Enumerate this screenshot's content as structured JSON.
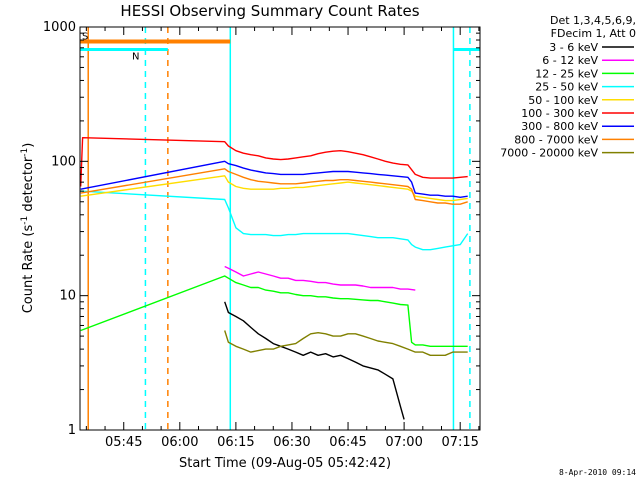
{
  "chart_data": {
    "type": "line",
    "title": "HESSI Observing Summary Count Rates",
    "xlabel": "Start Time (09-Aug-05 05:42:42)",
    "ylabel_parts": [
      "Count Rate (s",
      "-1",
      " detector",
      "-1",
      ")"
    ],
    "y_scale": "log",
    "ylim": [
      1,
      1000
    ],
    "xlim": [
      -11.7,
      95.3
    ],
    "y_ticks": [
      {
        "value": 1,
        "label": "1"
      },
      {
        "value": 10,
        "label": "10"
      },
      {
        "value": 100,
        "label": "100"
      },
      {
        "value": 1000,
        "label": "1000"
      }
    ],
    "x_ticks": [
      {
        "value": 0,
        "label": "05:45"
      },
      {
        "value": 15,
        "label": "06:00"
      },
      {
        "value": 30,
        "label": "06:15"
      },
      {
        "value": 45,
        "label": "06:30"
      },
      {
        "value": 60,
        "label": "06:45"
      },
      {
        "value": 75,
        "label": "07:00"
      },
      {
        "value": 90,
        "label": "07:15"
      }
    ],
    "x_unit_note": "x values are minutes after 05:45",
    "legend": {
      "header": [
        "Det 1,3,4,5,6,9,",
        "FDecim 1, Att 0"
      ],
      "placement": "right"
    },
    "series": [
      {
        "name": "3 - 6 keV",
        "color": "#000000",
        "x": [
          27,
          28,
          30,
          32,
          34,
          36,
          38,
          40,
          42,
          44,
          46,
          48,
          50,
          52,
          54,
          56,
          58,
          60,
          62,
          64,
          66,
          68,
          70,
          72,
          74,
          75
        ],
        "y": [
          9.0,
          7.5,
          7.0,
          6.5,
          5.8,
          5.2,
          4.8,
          4.4,
          4.2,
          4.0,
          3.8,
          3.6,
          3.8,
          3.6,
          3.7,
          3.5,
          3.6,
          3.4,
          3.2,
          3.0,
          2.9,
          2.8,
          2.6,
          2.4,
          1.5,
          1.2
        ]
      },
      {
        "name": "6 - 12 keV",
        "color": "#ff00ff",
        "x": [
          27,
          28,
          30,
          32,
          34,
          36,
          38,
          40,
          42,
          44,
          46,
          48,
          50,
          52,
          54,
          56,
          58,
          60,
          62,
          64,
          66,
          68,
          70,
          72,
          74,
          76,
          78
        ],
        "y": [
          16.5,
          16.0,
          15.0,
          14.0,
          14.5,
          15.0,
          14.5,
          14.0,
          13.5,
          13.5,
          13.0,
          13.0,
          12.8,
          12.5,
          12.5,
          12.2,
          12.0,
          12.0,
          12.0,
          11.8,
          11.5,
          11.5,
          11.5,
          11.5,
          11.2,
          11.2,
          11.0
        ]
      },
      {
        "name": "12 - 25 keV",
        "color": "#00ff00",
        "x": [
          -11.5,
          27,
          28,
          30,
          32,
          34,
          36,
          38,
          40,
          42,
          44,
          46,
          48,
          50,
          52,
          54,
          56,
          58,
          60,
          62,
          64,
          66,
          68,
          70,
          72,
          74,
          76,
          77,
          78,
          80,
          82,
          84,
          86,
          88,
          90,
          92
        ],
        "y": [
          5.5,
          14.0,
          13.5,
          12.5,
          12.0,
          11.5,
          11.5,
          11.0,
          10.8,
          10.5,
          10.5,
          10.2,
          10.0,
          10.0,
          9.8,
          9.8,
          9.6,
          9.5,
          9.5,
          9.4,
          9.3,
          9.2,
          9.2,
          9.0,
          8.8,
          8.6,
          8.5,
          4.5,
          4.3,
          4.3,
          4.2,
          4.2,
          4.2,
          4.2,
          4.2,
          4.2
        ]
      },
      {
        "name": "25 - 50 keV",
        "color": "#00ffff",
        "x": [
          -11.5,
          27,
          28,
          29,
          30,
          32,
          34,
          36,
          38,
          40,
          42,
          44,
          46,
          48,
          50,
          52,
          54,
          56,
          58,
          60,
          62,
          64,
          66,
          68,
          70,
          72,
          74,
          76,
          77,
          78,
          80,
          82,
          84,
          86,
          88,
          90,
          92
        ],
        "y": [
          60,
          52,
          45,
          38,
          32,
          29,
          28.5,
          28.5,
          28.5,
          28,
          28,
          28.5,
          28.5,
          29,
          29,
          29,
          29,
          29,
          29,
          29,
          28.5,
          28,
          27.5,
          27,
          27,
          27,
          26.5,
          26,
          24,
          23,
          22,
          22,
          22.5,
          23,
          23.5,
          24,
          29
        ]
      },
      {
        "name": "50 - 100 keV",
        "color": "#ffdd00",
        "x": [
          -11.5,
          27,
          28,
          30,
          32,
          34,
          36,
          38,
          40,
          42,
          44,
          46,
          48,
          50,
          52,
          54,
          56,
          58,
          60,
          62,
          64,
          66,
          68,
          70,
          72,
          74,
          76,
          77,
          78,
          80,
          82,
          84,
          86,
          88,
          90,
          92
        ],
        "y": [
          55,
          78,
          70,
          65,
          63,
          62,
          62,
          62,
          62,
          63,
          63,
          64,
          64,
          65,
          66,
          67,
          68,
          69,
          70,
          69,
          68,
          67,
          66,
          65,
          64,
          63,
          62,
          60,
          55,
          54,
          53,
          52,
          51,
          51,
          52,
          53
        ]
      },
      {
        "name": "100 - 300 keV",
        "color": "#ff0000",
        "x": [
          -11.5,
          -11,
          27,
          28,
          30,
          32,
          34,
          36,
          38,
          40,
          42,
          44,
          46,
          48,
          50,
          52,
          54,
          56,
          58,
          60,
          62,
          64,
          66,
          68,
          70,
          72,
          74,
          76,
          78,
          80,
          82,
          84,
          86,
          88,
          90,
          92
        ],
        "y": [
          65,
          150,
          140,
          130,
          120,
          115,
          112,
          110,
          106,
          104,
          103,
          104,
          106,
          108,
          110,
          114,
          117,
          119,
          120,
          118,
          115,
          112,
          108,
          104,
          100,
          97,
          95,
          94,
          80,
          76,
          75,
          75,
          75,
          75,
          76,
          77
        ]
      },
      {
        "name": "300 - 800 keV",
        "color": "#0000ff",
        "x": [
          -11.5,
          27,
          28,
          30,
          32,
          34,
          36,
          38,
          40,
          42,
          44,
          46,
          48,
          50,
          52,
          54,
          56,
          58,
          60,
          62,
          64,
          66,
          68,
          70,
          72,
          74,
          76,
          77,
          78,
          80,
          82,
          84,
          86,
          88,
          90,
          92
        ],
        "y": [
          62,
          100,
          96,
          93,
          89,
          86,
          84,
          82,
          81,
          80,
          80,
          80,
          80,
          81,
          82,
          83,
          84,
          84,
          84,
          83,
          82,
          81,
          80,
          79,
          78,
          77,
          76,
          70,
          58,
          57,
          56,
          56,
          55,
          55,
          54,
          55
        ]
      },
      {
        "name": "800 - 7000 keV",
        "color": "#ff8000",
        "x": [
          -11.5,
          27,
          28,
          30,
          32,
          34,
          36,
          38,
          40,
          42,
          44,
          46,
          48,
          50,
          52,
          54,
          56,
          58,
          60,
          62,
          64,
          66,
          68,
          70,
          72,
          74,
          76,
          77,
          78,
          80,
          82,
          84,
          86,
          88,
          90,
          92
        ],
        "y": [
          58,
          88,
          84,
          80,
          76,
          73,
          71,
          70,
          69,
          68,
          68,
          68,
          69,
          70,
          71,
          72,
          72,
          73,
          73,
          72,
          71,
          70,
          69,
          68,
          67,
          66,
          65,
          62,
          52,
          51,
          50,
          49,
          49,
          48,
          48,
          50
        ]
      },
      {
        "name": "7000 - 20000 keV",
        "color": "#808000",
        "x": [
          27,
          28,
          30,
          32,
          34,
          36,
          38,
          40,
          42,
          44,
          46,
          48,
          50,
          52,
          54,
          56,
          58,
          60,
          62,
          64,
          66,
          68,
          70,
          72,
          74,
          76,
          78,
          80,
          82,
          84,
          86,
          88,
          90,
          92
        ],
        "y": [
          5.5,
          4.5,
          4.2,
          4.0,
          3.8,
          3.9,
          4.0,
          4.0,
          4.2,
          4.3,
          4.4,
          4.8,
          5.2,
          5.3,
          5.2,
          5.0,
          5.0,
          5.2,
          5.2,
          5.0,
          4.8,
          4.6,
          4.5,
          4.4,
          4.2,
          4.0,
          3.8,
          3.8,
          3.6,
          3.6,
          3.6,
          3.8,
          3.8,
          3.8
        ]
      }
    ],
    "flags": {
      "label_S": "S",
      "label_N": "N",
      "S_segment": {
        "x_start": -11.7,
        "x_end": 28.5,
        "y": 780
      },
      "N_segment_1": {
        "x_start": -11.7,
        "x_end": 11.8,
        "y": 680
      },
      "N_segment_2": {
        "x_start": 88.2,
        "x_end": 95.3,
        "y": 680
      }
    },
    "vertical_markers": [
      {
        "kind": "solid",
        "color": "#ff8000",
        "x": -9.5
      },
      {
        "kind": "dashed",
        "color": "#00ffff",
        "x": 5.8
      },
      {
        "kind": "dashed",
        "color": "#ff8000",
        "x": 11.8
      },
      {
        "kind": "solid",
        "color": "#00ffff",
        "x": 28.5
      },
      {
        "kind": "solid",
        "color": "#00ffff",
        "x": 88.2
      },
      {
        "kind": "dashed",
        "color": "#00ffff",
        "x": 92.6
      }
    ]
  },
  "footer": {
    "timestamp": "8-Apr-2010 09:14"
  }
}
